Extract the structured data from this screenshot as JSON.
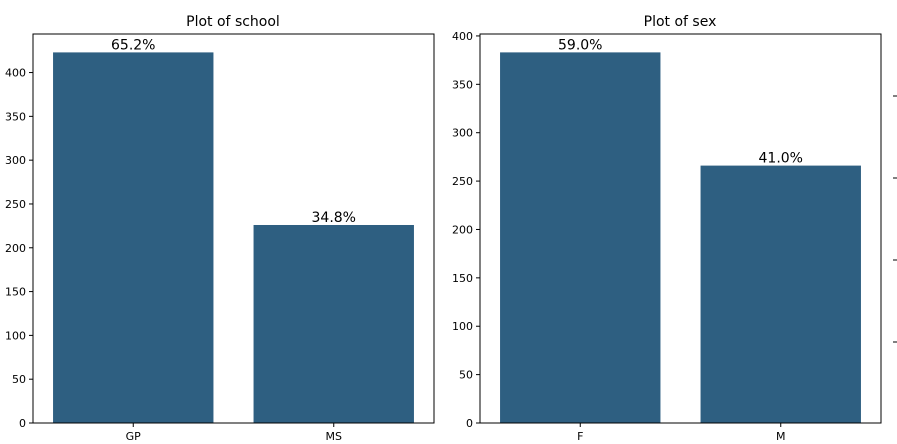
{
  "chart_data": [
    {
      "type": "bar",
      "title": "Plot of school",
      "xlabel": "",
      "ylabel": "",
      "categories": [
        "GP",
        "MS"
      ],
      "values": [
        423,
        226
      ],
      "data_labels": [
        "65.2%",
        "34.8%"
      ],
      "ylim": [
        0,
        444
      ],
      "yticks": [
        0,
        50,
        100,
        150,
        200,
        250,
        300,
        350,
        400
      ],
      "grid": false,
      "bar_color": "#2e5f81"
    },
    {
      "type": "bar",
      "title": "Plot of sex",
      "xlabel": "",
      "ylabel": "",
      "categories": [
        "F",
        "M"
      ],
      "values": [
        383,
        266
      ],
      "data_labels": [
        "59.0%",
        "41.0%"
      ],
      "ylim": [
        0,
        402
      ],
      "yticks": [
        0,
        50,
        100,
        150,
        200,
        250,
        300,
        350,
        400
      ],
      "grid": false,
      "bar_color": "#2e5f81"
    }
  ]
}
